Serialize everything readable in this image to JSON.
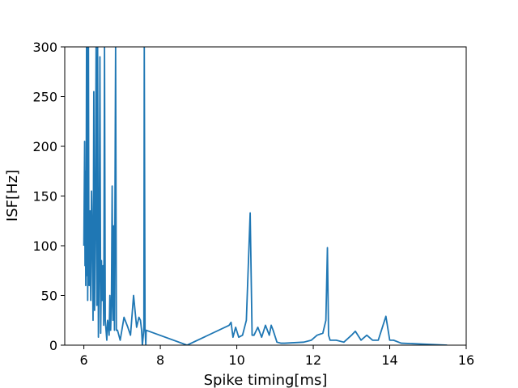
{
  "chart_data": {
    "type": "line",
    "title": "",
    "xlabel": "Spike timing[ms]",
    "ylabel": "ISF[Hz]",
    "xlim": [
      5.5,
      16
    ],
    "ylim": [
      0,
      300
    ],
    "xticks": [
      6,
      8,
      10,
      12,
      14,
      16
    ],
    "yticks": [
      0,
      50,
      100,
      150,
      200,
      250,
      300
    ],
    "grid": false,
    "line_color": "#1f77b4",
    "series": [
      {
        "x": [
          6.0,
          6.02,
          6.03,
          6.04,
          6.05,
          6.06,
          6.07,
          6.08,
          6.09,
          6.1,
          6.11,
          6.12,
          6.13,
          6.14,
          6.16,
          6.18,
          6.2,
          6.22,
          6.24,
          6.26,
          6.28,
          6.3,
          6.32,
          6.34,
          6.36,
          6.38,
          6.4,
          6.42,
          6.44,
          6.46,
          6.48,
          6.5,
          6.52,
          6.54,
          6.56,
          6.58,
          6.6,
          6.62,
          6.64,
          6.66,
          6.68,
          6.7,
          6.72,
          6.74,
          6.76,
          6.78,
          6.8,
          6.83,
          6.85,
          6.88,
          6.95,
          7.05,
          7.15,
          7.22,
          7.3,
          7.38,
          7.44,
          7.48,
          7.51,
          7.53,
          7.55,
          7.57,
          7.58,
          7.6,
          7.62,
          7.63,
          8.7,
          9.8,
          9.85,
          9.9,
          9.97,
          10.05,
          10.15,
          10.25,
          10.35,
          10.4,
          10.45,
          10.55,
          10.65,
          10.75,
          10.85,
          10.9,
          10.95,
          11.05,
          11.15,
          11.25,
          11.75,
          11.95,
          12.1,
          12.25,
          12.33,
          12.37,
          12.4,
          12.44,
          12.6,
          12.8,
          13.0,
          13.1,
          13.25,
          13.4,
          13.55,
          13.7,
          13.9,
          14.0,
          14.1,
          14.3,
          15.5
        ],
        "y": [
          100,
          205,
          80,
          175,
          60,
          135,
          300,
          70,
          300,
          45,
          125,
          300,
          115,
          60,
          135,
          45,
          155,
          110,
          25,
          255,
          35,
          120,
          300,
          40,
          300,
          8,
          70,
          290,
          12,
          85,
          45,
          80,
          20,
          300,
          25,
          15,
          5,
          25,
          20,
          10,
          50,
          15,
          40,
          160,
          25,
          120,
          15,
          300,
          15,
          15,
          5,
          28,
          18,
          10,
          50,
          18,
          28,
          25,
          15,
          0,
          8,
          18,
          300,
          16,
          0,
          15,
          0,
          20,
          23,
          8,
          18,
          8,
          10,
          25,
          133,
          10,
          10,
          18,
          8,
          20,
          10,
          20,
          15,
          3,
          2,
          2,
          3,
          5,
          10,
          12,
          25,
          98,
          10,
          5,
          5,
          3,
          10,
          14,
          5,
          10,
          5,
          5,
          29,
          5,
          5,
          2,
          0
        ]
      }
    ]
  }
}
